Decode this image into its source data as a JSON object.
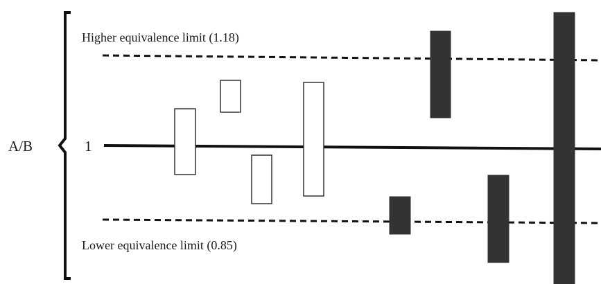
{
  "diagram": {
    "ratio_label": "A/B",
    "unity_label": "1",
    "upper_limit_label": "Higher equivalence limit (1.18)",
    "lower_limit_label": "Lower equivalence limit (0.85)",
    "colors": {
      "line": "#111111",
      "open_box_fill": "#ffffff",
      "open_box_stroke": "#333333",
      "filled_box": "#333333"
    },
    "intervals": [
      {
        "style": "open"
      },
      {
        "style": "open"
      },
      {
        "style": "open"
      },
      {
        "style": "open"
      },
      {
        "style": "filled"
      },
      {
        "style": "filled"
      },
      {
        "style": "filled"
      },
      {
        "style": "filled"
      }
    ]
  }
}
